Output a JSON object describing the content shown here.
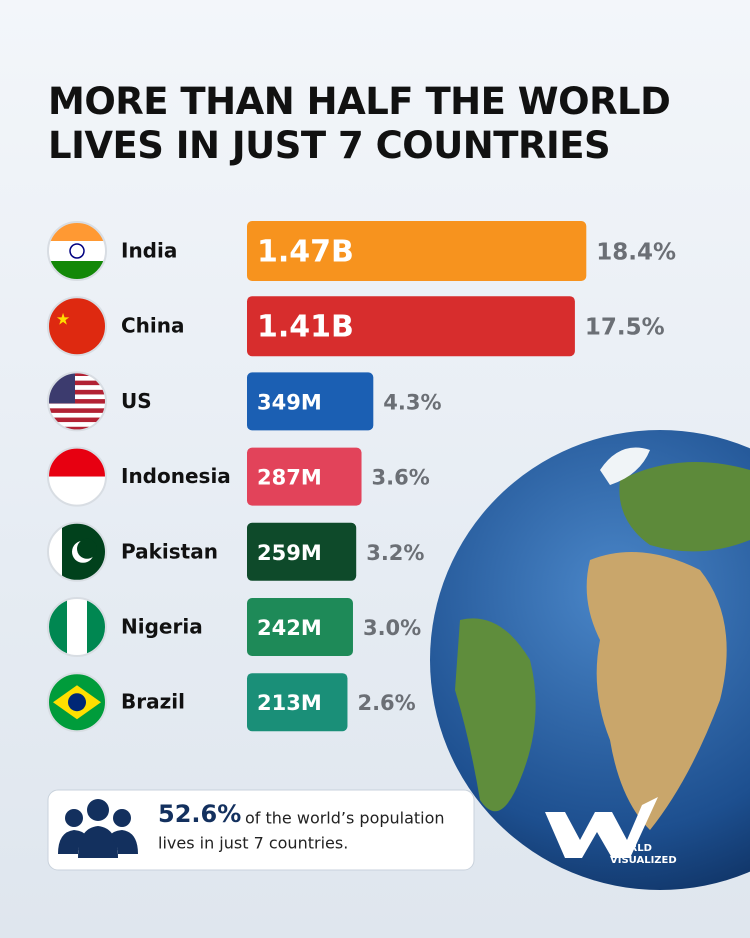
{
  "chart_data": {
    "type": "bar",
    "title": "MORE THAN HALF THE WORLD LIVES IN JUST 7 COUNTRIES",
    "categories": [
      "India",
      "China",
      "US",
      "Indonesia",
      "Pakistan",
      "Nigeria",
      "Brazil"
    ],
    "values": [
      1470,
      1410,
      349,
      287,
      259,
      242,
      213
    ],
    "value_labels": [
      "1.47B",
      "1.41B",
      "349M",
      "287M",
      "259M",
      "242M",
      "213M"
    ],
    "shares": [
      18.4,
      17.5,
      4.3,
      3.6,
      3.2,
      3.0,
      2.6
    ],
    "share_labels": [
      "18.4%",
      "17.5%",
      "4.3%",
      "3.6%",
      "3.2%",
      "3.0%",
      "2.6%"
    ],
    "colors": [
      "#f7931e",
      "#d72d2d",
      "#1b5fb3",
      "#e2435a",
      "#0e4a2a",
      "#1e8a58",
      "#1a8f78"
    ]
  },
  "callout": {
    "highlight": "52.6%",
    "line1": "of the world’s population",
    "line2": "lives in just 7 countries."
  },
  "logo": {
    "line1": "WORLD",
    "line2": "VISUALIZED"
  }
}
